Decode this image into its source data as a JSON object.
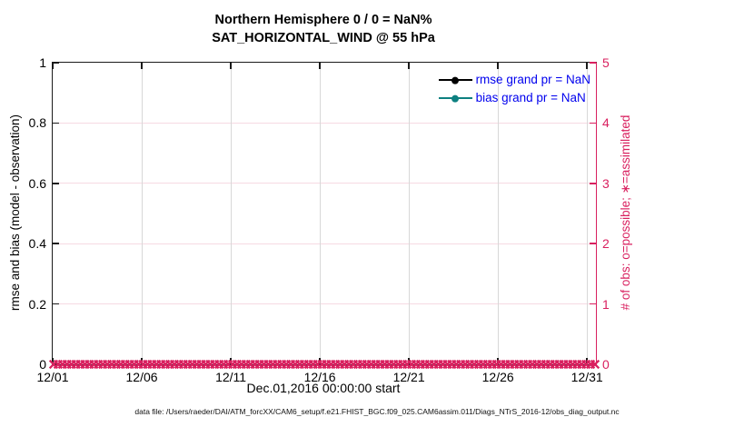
{
  "figure": {
    "title_line1": "Northern Hemisphere 0 / 0 = NaN%",
    "title_line2": "SAT_HORIZONTAL_WIND @ 55 hPa",
    "xlabel": "Dec.01,2016 00:00:00 start",
    "ylabel_left": "rmse and bias (model - observation)",
    "ylabel_right": "# of obs: o=possible; ∗=assimilated",
    "caption": "data file: /Users/raeder/DAI/ATM_forcXX/CAM6_setup/f.e21.FHIST_BGC.f09_025.CAM6assim.011/Diags_NTrS_2016-12/obs_diag_output.nc"
  },
  "legend": [
    {
      "label": "rmse grand pr = NaN",
      "color": "#000000"
    },
    {
      "label": "bias grand pr = NaN",
      "color": "#0d8080"
    }
  ],
  "colors": {
    "accent_pink": "#d9205f",
    "grid_h": "#f6d9e3",
    "grid_v": "#d8d8d8",
    "spine": "#1a1a1a",
    "legend_text": "#0000ee",
    "rmse": "#000000",
    "bias": "#0d8080"
  },
  "chart_data": {
    "type": "line",
    "title": "Northern Hemisphere 0 / 0 = NaN% | SAT_HORIZONTAL_WIND @ 55 hPa",
    "xlabel": "Dec.01,2016 00:00:00 start",
    "x_axis": {
      "range_days": [
        0,
        30.5
      ],
      "tick_days": [
        0,
        5,
        10,
        15,
        20,
        25,
        30
      ],
      "tick_labels": [
        "12/01",
        "12/06",
        "12/11",
        "12/16",
        "12/21",
        "12/26",
        "12/31"
      ]
    },
    "y_left": {
      "label": "rmse and bias (model - observation)",
      "range": [
        0,
        1
      ],
      "ticks": [
        0,
        0.2,
        0.4,
        0.6,
        0.8,
        1
      ],
      "tick_labels": [
        "0",
        "0.2",
        "0.4",
        "0.6",
        "0.8",
        "1"
      ]
    },
    "y_right": {
      "label": "# of obs: o=possible; ∗=assimilated",
      "range": [
        0,
        5
      ],
      "ticks": [
        0,
        1,
        2,
        3,
        4,
        5
      ],
      "tick_labels": [
        "0",
        "1",
        "2",
        "3",
        "4",
        "5"
      ]
    },
    "series": [
      {
        "name": "rmse grand pr",
        "grand_value": "NaN",
        "values": "all NaN (no line drawn)"
      },
      {
        "name": "bias grand pr",
        "grand_value": "NaN",
        "values": "all NaN (no line drawn)"
      },
      {
        "name": "assimilated obs count (x markers)",
        "marker": "x",
        "count": 122,
        "value_each": 0
      },
      {
        "name": "possible obs count (o markers)",
        "marker": "o",
        "count": 122,
        "value_each": 0
      }
    ],
    "grid": true,
    "legend_position": "upper right inside"
  }
}
